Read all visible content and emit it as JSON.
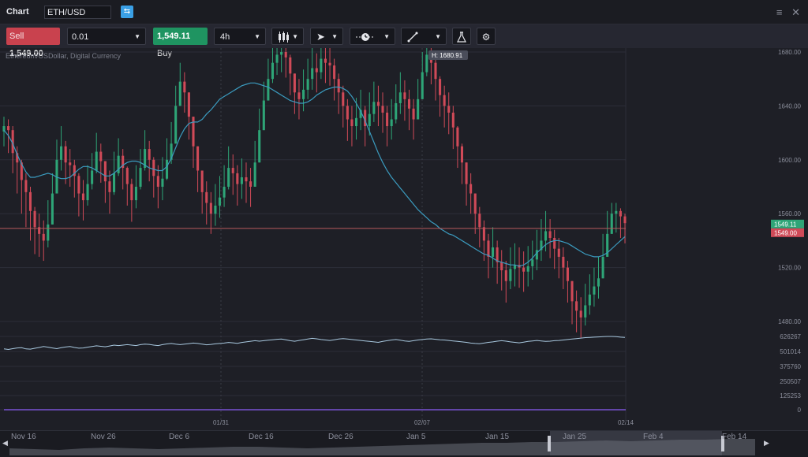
{
  "header": {
    "title": "Chart",
    "symbol": "ETH/USD",
    "compare_icon": "compare-icon",
    "window_icons": [
      "menu-icon",
      "close-icon"
    ]
  },
  "toolbar": {
    "sell_label": "Sell",
    "sell_price": "1,549.00",
    "quantity": "0.01",
    "buy_price": "1,549.11",
    "buy_label": "Buy",
    "timeframe": "4h",
    "icons": [
      "candlestick-chart-icon",
      "cursor-icon",
      "clock-line-icon",
      "trendline-icon",
      "flask-icon",
      "gear-icon"
    ]
  },
  "colors": {
    "background": "#1e1f26",
    "bull": "#2ea577",
    "bear": "#d04a58",
    "ma_line": "#3b9bbf",
    "volume_line": "#a9c9e0",
    "purple_line": "#8a5cf6",
    "current_price_line": "#b75a5e"
  },
  "chart": {
    "subtitle": "Ethereum/USDollar, Digital Currency",
    "high_marker": "H: 1680.91",
    "buy_tag": "1549.11",
    "sell_tag": "1549.00",
    "price_ticks": [
      "1680.00",
      "1640.00",
      "1600.00",
      "1560.00",
      "1520.00",
      "1480.00"
    ],
    "volume_ticks": [
      "626267",
      "501014",
      "375760",
      "250507",
      "125253",
      "0"
    ],
    "top_dates": [
      "01/31",
      "02/07",
      "02/14"
    ],
    "bottom_dates": [
      "Nov 16",
      "Nov 26",
      "Dec 6",
      "Dec 16",
      "Dec 26",
      "Jan 5",
      "Jan 15",
      "Jan 25",
      "Feb 4",
      "Feb 14"
    ]
  },
  "chart_data": {
    "type": "candlestick",
    "ylim": [
      1470,
      1685
    ],
    "last_price": 1549.11,
    "series": [
      {
        "name": "candles",
        "close": [
          1625,
          1622,
          1605,
          1598,
          1585,
          1576,
          1562,
          1550,
          1545,
          1540,
          1552,
          1575,
          1600,
          1610,
          1598,
          1596,
          1588,
          1575,
          1570,
          1582,
          1592,
          1606,
          1599,
          1584,
          1576,
          1590,
          1603,
          1594,
          1582,
          1570,
          1580,
          1594,
          1608,
          1600,
          1588,
          1580,
          1586,
          1600,
          1612,
          1640,
          1658,
          1650,
          1632,
          1610,
          1592,
          1576,
          1568,
          1560,
          1566,
          1572,
          1580,
          1594,
          1590,
          1582,
          1587,
          1584,
          1580,
          1598,
          1622,
          1644,
          1660,
          1672,
          1678,
          1680,
          1676,
          1664,
          1650,
          1645,
          1652,
          1660,
          1668,
          1665,
          1675,
          1672,
          1670,
          1660,
          1650,
          1640,
          1630,
          1625,
          1631,
          1637,
          1625,
          1634,
          1643,
          1640,
          1635,
          1625,
          1630,
          1642,
          1650,
          1645,
          1638,
          1630,
          1645,
          1665,
          1678,
          1672,
          1660,
          1648,
          1640,
          1635,
          1624,
          1610,
          1598,
          1582,
          1575,
          1560,
          1550,
          1540,
          1528,
          1535,
          1524,
          1518,
          1510,
          1519,
          1522,
          1520,
          1517,
          1521,
          1526,
          1533,
          1540,
          1547,
          1542,
          1534,
          1528,
          1520,
          1510,
          1495,
          1488,
          1483,
          1492,
          1500,
          1506,
          1512,
          1528,
          1545,
          1560,
          1562,
          1558,
          1553
        ],
        "high": [
          1632,
          1630,
          1625,
          1610,
          1600,
          1590,
          1580,
          1565,
          1560,
          1555,
          1570,
          1590,
          1615,
          1625,
          1614,
          1608,
          1600,
          1590,
          1585,
          1596,
          1605,
          1620,
          1612,
          1598,
          1592,
          1606,
          1616,
          1608,
          1595,
          1586,
          1596,
          1608,
          1622,
          1614,
          1602,
          1596,
          1602,
          1616,
          1628,
          1655,
          1672,
          1665,
          1648,
          1626,
          1608,
          1592,
          1584,
          1576,
          1582,
          1588,
          1596,
          1610,
          1604,
          1596,
          1601,
          1598,
          1594,
          1614,
          1638,
          1658,
          1675,
          1686,
          1690,
          1692,
          1690,
          1678,
          1664,
          1660,
          1667,
          1675,
          1683,
          1679,
          1689,
          1686,
          1684,
          1675,
          1664,
          1655,
          1645,
          1640,
          1646,
          1652,
          1640,
          1650,
          1658,
          1655,
          1650,
          1640,
          1645,
          1656,
          1665,
          1659,
          1652,
          1645,
          1660,
          1680,
          1690,
          1686,
          1675,
          1662,
          1655,
          1650,
          1640,
          1625,
          1612,
          1598,
          1590,
          1575,
          1565,
          1555,
          1545,
          1550,
          1540,
          1533,
          1525,
          1535,
          1538,
          1535,
          1532,
          1536,
          1540,
          1548,
          1556,
          1562,
          1556,
          1548,
          1542,
          1535,
          1525,
          1510,
          1503,
          1498,
          1508,
          1515,
          1520,
          1528,
          1545,
          1562,
          1568,
          1568,
          1564,
          1560
        ],
        "low": [
          1610,
          1605,
          1590,
          1575,
          1560,
          1550,
          1540,
          1530,
          1528,
          1525,
          1535,
          1556,
          1580,
          1592,
          1582,
          1580,
          1572,
          1558,
          1555,
          1566,
          1578,
          1590,
          1583,
          1568,
          1560,
          1574,
          1588,
          1578,
          1566,
          1554,
          1564,
          1578,
          1592,
          1584,
          1572,
          1564,
          1570,
          1585,
          1597,
          1624,
          1642,
          1635,
          1615,
          1594,
          1576,
          1560,
          1552,
          1545,
          1551,
          1557,
          1565,
          1578,
          1574,
          1566,
          1571,
          1568,
          1565,
          1582,
          1606,
          1628,
          1645,
          1657,
          1663,
          1665,
          1661,
          1648,
          1634,
          1630,
          1636,
          1645,
          1652,
          1650,
          1660,
          1657,
          1655,
          1644,
          1634,
          1624,
          1614,
          1610,
          1615,
          1622,
          1610,
          1618,
          1628,
          1625,
          1620,
          1610,
          1615,
          1627,
          1634,
          1629,
          1622,
          1615,
          1630,
          1650,
          1662,
          1656,
          1644,
          1632,
          1624,
          1619,
          1608,
          1594,
          1582,
          1566,
          1560,
          1545,
          1535,
          1525,
          1512,
          1520,
          1508,
          1503,
          1494,
          1504,
          1506,
          1505,
          1502,
          1506,
          1511,
          1518,
          1525,
          1532,
          1527,
          1519,
          1512,
          1504,
          1494,
          1478,
          1472,
          1468,
          1477,
          1485,
          1491,
          1497,
          1513,
          1530,
          1545,
          1546,
          1542,
          1538
        ],
        "ma": [
          1622,
          1618,
          1612,
          1604,
          1597,
          1591,
          1587,
          1587,
          1588,
          1589,
          1590,
          1589,
          1587,
          1586,
          1586,
          1587,
          1590,
          1593,
          1595,
          1595,
          1594,
          1592,
          1590,
          1588,
          1588,
          1590,
          1593,
          1596,
          1598,
          1599,
          1599,
          1598,
          1596,
          1594,
          1593,
          1592,
          1592,
          1595,
          1601,
          1609,
          1617,
          1623,
          1627,
          1628,
          1628,
          1630,
          1634,
          1637,
          1641,
          1645,
          1647,
          1649,
          1651,
          1653,
          1655,
          1656,
          1657,
          1657,
          1656,
          1655,
          1654,
          1652,
          1650,
          1648,
          1646,
          1644,
          1643,
          1642,
          1642,
          1643,
          1645,
          1648,
          1650,
          1652,
          1653,
          1654,
          1654,
          1653,
          1651,
          1647,
          1642,
          1636,
          1629,
          1621,
          1613,
          1605,
          1598,
          1592,
          1587,
          1583,
          1579,
          1575,
          1571,
          1567,
          1563,
          1560,
          1557,
          1554,
          1552,
          1549,
          1547,
          1545,
          1544,
          1542,
          1540,
          1538,
          1536,
          1534,
          1532,
          1530,
          1529,
          1527,
          1525,
          1524,
          1523,
          1522,
          1522,
          1521,
          1522,
          1524,
          1527,
          1531,
          1534,
          1537,
          1539,
          1540,
          1540,
          1539,
          1538,
          1536,
          1534,
          1532,
          1530,
          1529,
          1528,
          1528,
          1529,
          1531,
          1534,
          1537,
          1540,
          1543
        ]
      },
      {
        "name": "volume",
        "values": [
          520000,
          515000,
          522000,
          528000,
          530000,
          520000,
          518000,
          525000,
          532000,
          540000,
          535000,
          528000,
          522000,
          530000,
          536000,
          540000,
          532000,
          526000,
          528000,
          535000,
          540000,
          546000,
          542000,
          538000,
          545000,
          552000,
          548000,
          552000,
          556000,
          552000,
          548000,
          556000,
          560000,
          558000,
          552000,
          548000,
          556000,
          562000,
          566000,
          560000,
          556000,
          560000,
          565000,
          570000,
          566000,
          560000,
          555000,
          558000,
          563000,
          566000,
          570000,
          575000,
          572000,
          568000,
          575000,
          580000,
          585000,
          590000,
          586000,
          590000,
          594000,
          598000,
          602000,
          604000,
          598000,
          590000,
          585000,
          592000,
          598000,
          605000,
          610000,
          606000,
          600000,
          596000,
          592000,
          598000,
          604000,
          608000,
          605000,
          600000,
          596000,
          592000,
          588000,
          584000,
          580000,
          576000,
          584000,
          590000,
          596000,
          600000,
          594000,
          588000,
          584000,
          590000,
          596000,
          600000,
          604000,
          606000,
          602000,
          598000,
          596000,
          592000,
          588000,
          584000,
          580000,
          576000,
          570000,
          566000,
          564000,
          570000,
          576000,
          580000,
          586000,
          590000,
          586000,
          580000,
          576000,
          572000,
          578000,
          584000,
          588000,
          592000,
          588000,
          584000,
          586000,
          590000,
          592000,
          596000,
          600000,
          604000,
          608000,
          612000,
          616000,
          618000,
          620000,
          622000,
          624000,
          626000,
          626000,
          624000,
          620000,
          618000
        ]
      }
    ]
  }
}
